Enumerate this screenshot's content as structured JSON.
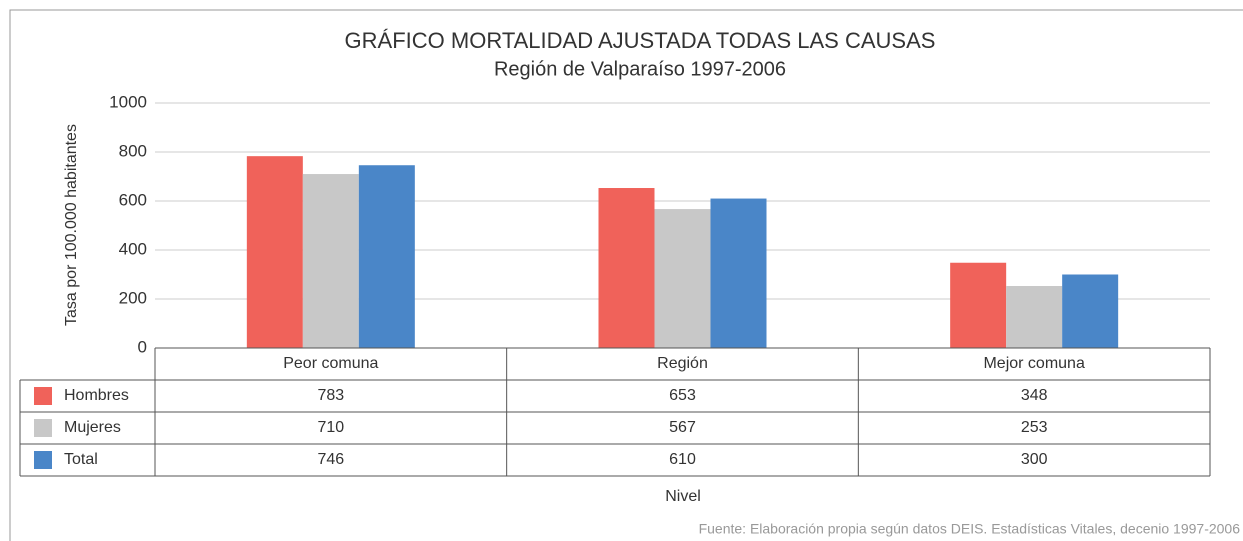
{
  "chart_data": {
    "type": "bar",
    "title": "GRÁFICO MORTALIDAD AJUSTADA TODAS LAS CAUSAS",
    "subtitle": "Región de Valparaíso 1997-2006",
    "y_label": "Tasa por 100.000 habitantes",
    "x_label": "Nivel",
    "source": "Fuente: Elaboración propia según datos DEIS. Estadísticas Vitales, decenio 1997-2006",
    "categories": [
      "Peor comuna",
      "Región",
      "Mejor comuna"
    ],
    "series": [
      {
        "name": "Hombres",
        "color": "#f0625a",
        "values": [
          783,
          653,
          348
        ]
      },
      {
        "name": "Mujeres",
        "color": "#c8c8c8",
        "values": [
          710,
          567,
          253
        ]
      },
      {
        "name": "Total",
        "color": "#4a86c8",
        "values": [
          746,
          610,
          300
        ]
      }
    ],
    "ylim": [
      0,
      1000
    ],
    "yticks": [
      0,
      200,
      400,
      600,
      800,
      1000
    ],
    "grid": true
  }
}
